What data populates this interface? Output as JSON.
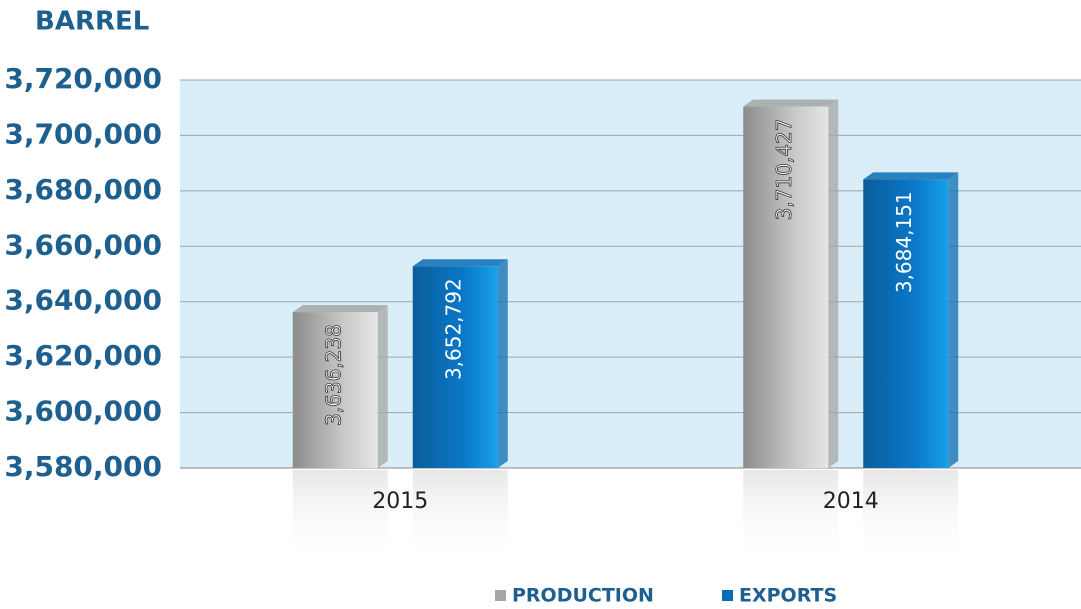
{
  "chart_data": {
    "type": "bar",
    "y_axis_label": "BARREL",
    "categories": [
      "2015",
      "2014"
    ],
    "series": [
      {
        "name": "PRODUCTION",
        "color": "#a6a6a6",
        "values": [
          3636238,
          3710427
        ],
        "value_labels": [
          "3,636,238",
          "3,710,427"
        ]
      },
      {
        "name": "EXPORTS",
        "color": "#0a6db3",
        "values": [
          3652792,
          3684151
        ],
        "value_labels": [
          "3,652,792",
          "3,684,151"
        ]
      }
    ],
    "ylim": [
      3580000,
      3720000
    ],
    "yticks": [
      {
        "value": 3580000,
        "label": "3,580,000"
      },
      {
        "value": 3600000,
        "label": "3,600,000"
      },
      {
        "value": 3620000,
        "label": "3,620,000"
      },
      {
        "value": 3640000,
        "label": "3,640,000"
      },
      {
        "value": 3660000,
        "label": "3,660,000"
      },
      {
        "value": 3680000,
        "label": "3,680,000"
      },
      {
        "value": 3700000,
        "label": "3,700,000"
      },
      {
        "value": 3720000,
        "label": "3,720,000"
      }
    ],
    "grid": true,
    "legend": "bottom"
  }
}
